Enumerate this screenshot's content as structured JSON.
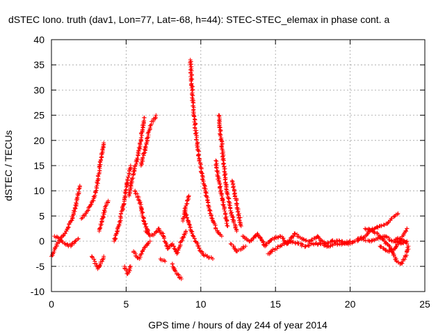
{
  "chart_data": {
    "type": "scatter",
    "title": "dSTEC Iono. truth (dav1, Lon=77, Lat=-68, h=44): STEC-STEC_elemax in phase cont. a",
    "xlabel": "GPS time / hours of day 244 of year 2014",
    "ylabel": "dSTEC  / TECUs",
    "xlim": [
      0,
      25
    ],
    "ylim": [
      -10,
      40
    ],
    "xticks": [
      0,
      5,
      10,
      15,
      20,
      25
    ],
    "yticks": [
      -10,
      -5,
      0,
      5,
      10,
      15,
      20,
      25,
      30,
      35,
      40
    ],
    "grid": true,
    "marker": "plus",
    "colors": {
      "series": "#ff0000",
      "axes": "#000000",
      "grid": "#a0a0a0"
    },
    "series": [
      {
        "x": [
          0.0,
          0.3,
          0.6,
          1.0,
          1.4,
          1.7,
          1.9
        ],
        "y": [
          -3.0,
          -1.0,
          0.5,
          2.0,
          4.5,
          8.0,
          11.0
        ]
      },
      {
        "x": [
          0.2,
          0.5,
          0.9,
          1.3,
          1.6,
          1.8
        ],
        "y": [
          1.0,
          0.5,
          -0.5,
          -1.0,
          0.0,
          0.5
        ]
      },
      {
        "x": [
          2.0,
          2.3,
          2.6,
          2.9,
          3.1,
          3.3,
          3.5
        ],
        "y": [
          4.5,
          5.5,
          7.0,
          9.0,
          12.0,
          16.0,
          19.5
        ]
      },
      {
        "x": [
          2.7,
          2.9,
          3.1,
          3.3,
          3.5
        ],
        "y": [
          -3.0,
          -4.0,
          -5.5,
          -4.5,
          -3.0
        ]
      },
      {
        "x": [
          3.2,
          3.4,
          3.6,
          3.8
        ],
        "y": [
          2.0,
          4.0,
          6.5,
          8.0
        ]
      },
      {
        "x": [
          4.2,
          4.5,
          4.8,
          5.1,
          5.3
        ],
        "y": [
          0.0,
          3.0,
          7.0,
          12.0,
          15.0
        ]
      },
      {
        "x": [
          4.9,
          5.1,
          5.3
        ],
        "y": [
          -5.0,
          -6.5,
          -5.0
        ]
      },
      {
        "x": [
          5.2,
          5.4,
          5.6,
          5.8,
          6.0,
          6.2
        ],
        "y": [
          9.0,
          12.5,
          15.0,
          17.0,
          20.5,
          24.5
        ]
      },
      {
        "x": [
          5.5,
          5.7,
          5.9,
          6.1,
          6.3,
          6.6
        ],
        "y": [
          -2.0,
          -3.0,
          -3.5,
          -2.0,
          -1.0,
          0.0
        ]
      },
      {
        "x": [
          5.6,
          5.9,
          6.2,
          6.5
        ],
        "y": [
          10.0,
          8.0,
          4.0,
          1.5
        ]
      },
      {
        "x": [
          6.0,
          6.2,
          6.4,
          6.6,
          6.8,
          7.0
        ],
        "y": [
          15.0,
          17.5,
          20.0,
          22.5,
          24.0,
          25.0
        ]
      },
      {
        "x": [
          6.3,
          6.6,
          6.9,
          7.2,
          7.5,
          7.8,
          8.1,
          8.4,
          8.7,
          9.0
        ],
        "y": [
          2.0,
          1.0,
          1.5,
          2.5,
          1.0,
          -1.5,
          -0.5,
          -2.5,
          0.0,
          2.0
        ]
      },
      {
        "x": [
          7.3,
          7.6
        ],
        "y": [
          -3.5,
          -4.0
        ]
      },
      {
        "x": [
          8.1,
          8.4,
          8.7
        ],
        "y": [
          -4.5,
          -6.5,
          -7.5
        ]
      },
      {
        "x": [
          8.8,
          9.0,
          9.2
        ],
        "y": [
          4.0,
          7.0,
          9.0
        ]
      },
      {
        "x": [
          9.3,
          9.5,
          9.7,
          9.9,
          10.1,
          10.3,
          10.5,
          10.8,
          11.1,
          11.4
        ],
        "y": [
          36.0,
          26.0,
          21.0,
          16.0,
          13.0,
          10.0,
          7.0,
          4.0,
          2.0,
          1.0
        ]
      },
      {
        "x": [
          8.9,
          9.2,
          9.5,
          9.8,
          10.1,
          10.4,
          10.8
        ],
        "y": [
          6.0,
          3.5,
          1.0,
          -1.0,
          -2.5,
          -3.0,
          -3.5
        ]
      },
      {
        "x": [
          11.0,
          11.2,
          11.4,
          11.6,
          11.8
        ],
        "y": [
          16.0,
          12.0,
          9.0,
          6.0,
          3.0
        ]
      },
      {
        "x": [
          11.2,
          11.4,
          11.7,
          12.0,
          12.4
        ],
        "y": [
          25.0,
          19.0,
          11.0,
          6.0,
          2.0
        ]
      },
      {
        "x": [
          12.0,
          12.2,
          12.4,
          12.7,
          13.0
        ],
        "y": [
          -0.5,
          -1.0,
          -2.0,
          -1.5,
          -1.0
        ]
      },
      {
        "x": [
          12.1,
          12.3,
          12.5,
          12.7
        ],
        "y": [
          12.0,
          9.0,
          6.0,
          3.0
        ]
      },
      {
        "x": [
          12.8,
          13.3,
          13.8,
          14.3,
          14.8,
          15.3,
          15.8,
          16.3,
          16.8,
          17.3,
          17.8,
          18.3,
          18.8,
          19.3,
          19.8,
          20.3,
          20.8,
          21.3,
          21.8,
          22.3,
          22.8,
          23.3,
          23.8
        ],
        "y": [
          1.0,
          0.0,
          1.5,
          -1.0,
          0.5,
          1.0,
          -0.5,
          1.5,
          0.5,
          0.0,
          1.0,
          -0.5,
          0.0,
          0.0,
          -0.5,
          0.0,
          0.5,
          0.0,
          0.5,
          1.0,
          0.0,
          0.5,
          -0.5
        ]
      },
      {
        "x": [
          14.5,
          15.0,
          15.5,
          16.0,
          16.5,
          17.0,
          17.5,
          18.0,
          18.5,
          19.0,
          19.5,
          20.0
        ],
        "y": [
          -2.5,
          -1.5,
          -0.5,
          0.0,
          -0.5,
          -1.0,
          -0.5,
          -0.5,
          -1.0,
          -0.5,
          -0.5,
          0.0
        ]
      },
      {
        "x": [
          20.5,
          21.0,
          21.5,
          22.0,
          22.5,
          22.8,
          23.0,
          23.2
        ],
        "y": [
          0.5,
          1.0,
          2.5,
          3.0,
          3.5,
          4.5,
          5.0,
          5.5
        ]
      },
      {
        "x": [
          21.0,
          21.5,
          22.0,
          22.3,
          22.6,
          22.9,
          23.1,
          23.4,
          23.7,
          23.9
        ],
        "y": [
          2.5,
          2.0,
          1.0,
          0.0,
          -1.0,
          -2.5,
          -4.0,
          -4.5,
          -3.0,
          -1.0
        ]
      },
      {
        "x": [
          22.0,
          22.5,
          23.0,
          23.3,
          23.6,
          23.8
        ],
        "y": [
          -1.0,
          -2.0,
          -1.5,
          0.0,
          1.5,
          2.5
        ]
      },
      {
        "x": [
          23.0,
          23.4,
          23.8
        ],
        "y": [
          0.0,
          -0.5,
          0.0
        ]
      }
    ]
  }
}
